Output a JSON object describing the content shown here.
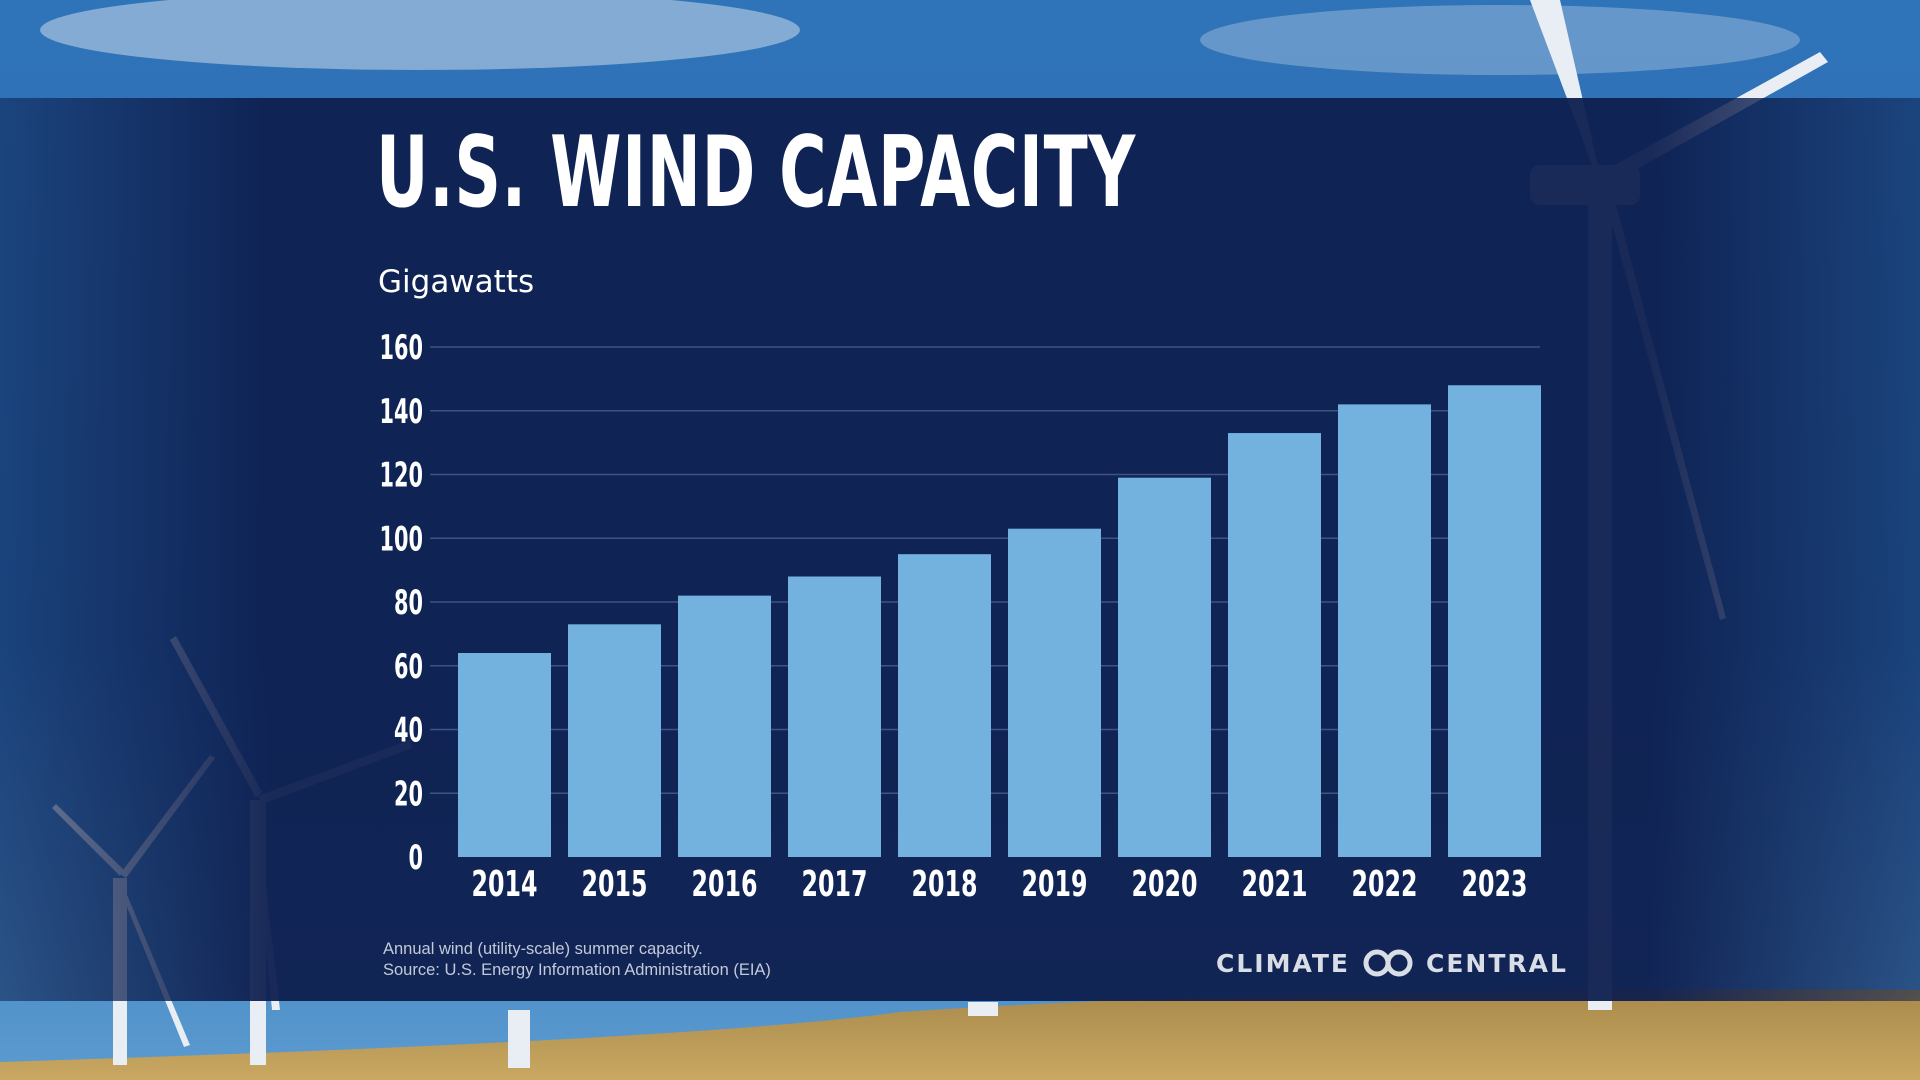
{
  "title": "U.S. WIND CAPACITY",
  "footnote": {
    "line1": "Annual wind (utility-scale) summer capacity.",
    "line2": "Source: U.S. Energy Information Administration (EIA)"
  },
  "brand": {
    "left": "CLIMATE",
    "right": "CENTRAL",
    "icon": "infinity-logo-icon"
  },
  "colors": {
    "bar": "#73b2de",
    "panel": "#0d1e4e",
    "text": "#ffffff"
  },
  "chart_data": {
    "type": "bar",
    "title": "U.S. WIND CAPACITY",
    "ylabel": "Gigawatts",
    "xlabel": "",
    "categories": [
      "2014",
      "2015",
      "2016",
      "2017",
      "2018",
      "2019",
      "2020",
      "2021",
      "2022",
      "2023"
    ],
    "values": [
      64,
      73,
      82,
      88,
      95,
      103,
      119,
      133,
      142,
      148
    ],
    "ylim": [
      0,
      160
    ],
    "yticks": [
      0,
      20,
      40,
      60,
      80,
      100,
      120,
      140,
      160
    ],
    "grid": true,
    "legend": "none"
  }
}
